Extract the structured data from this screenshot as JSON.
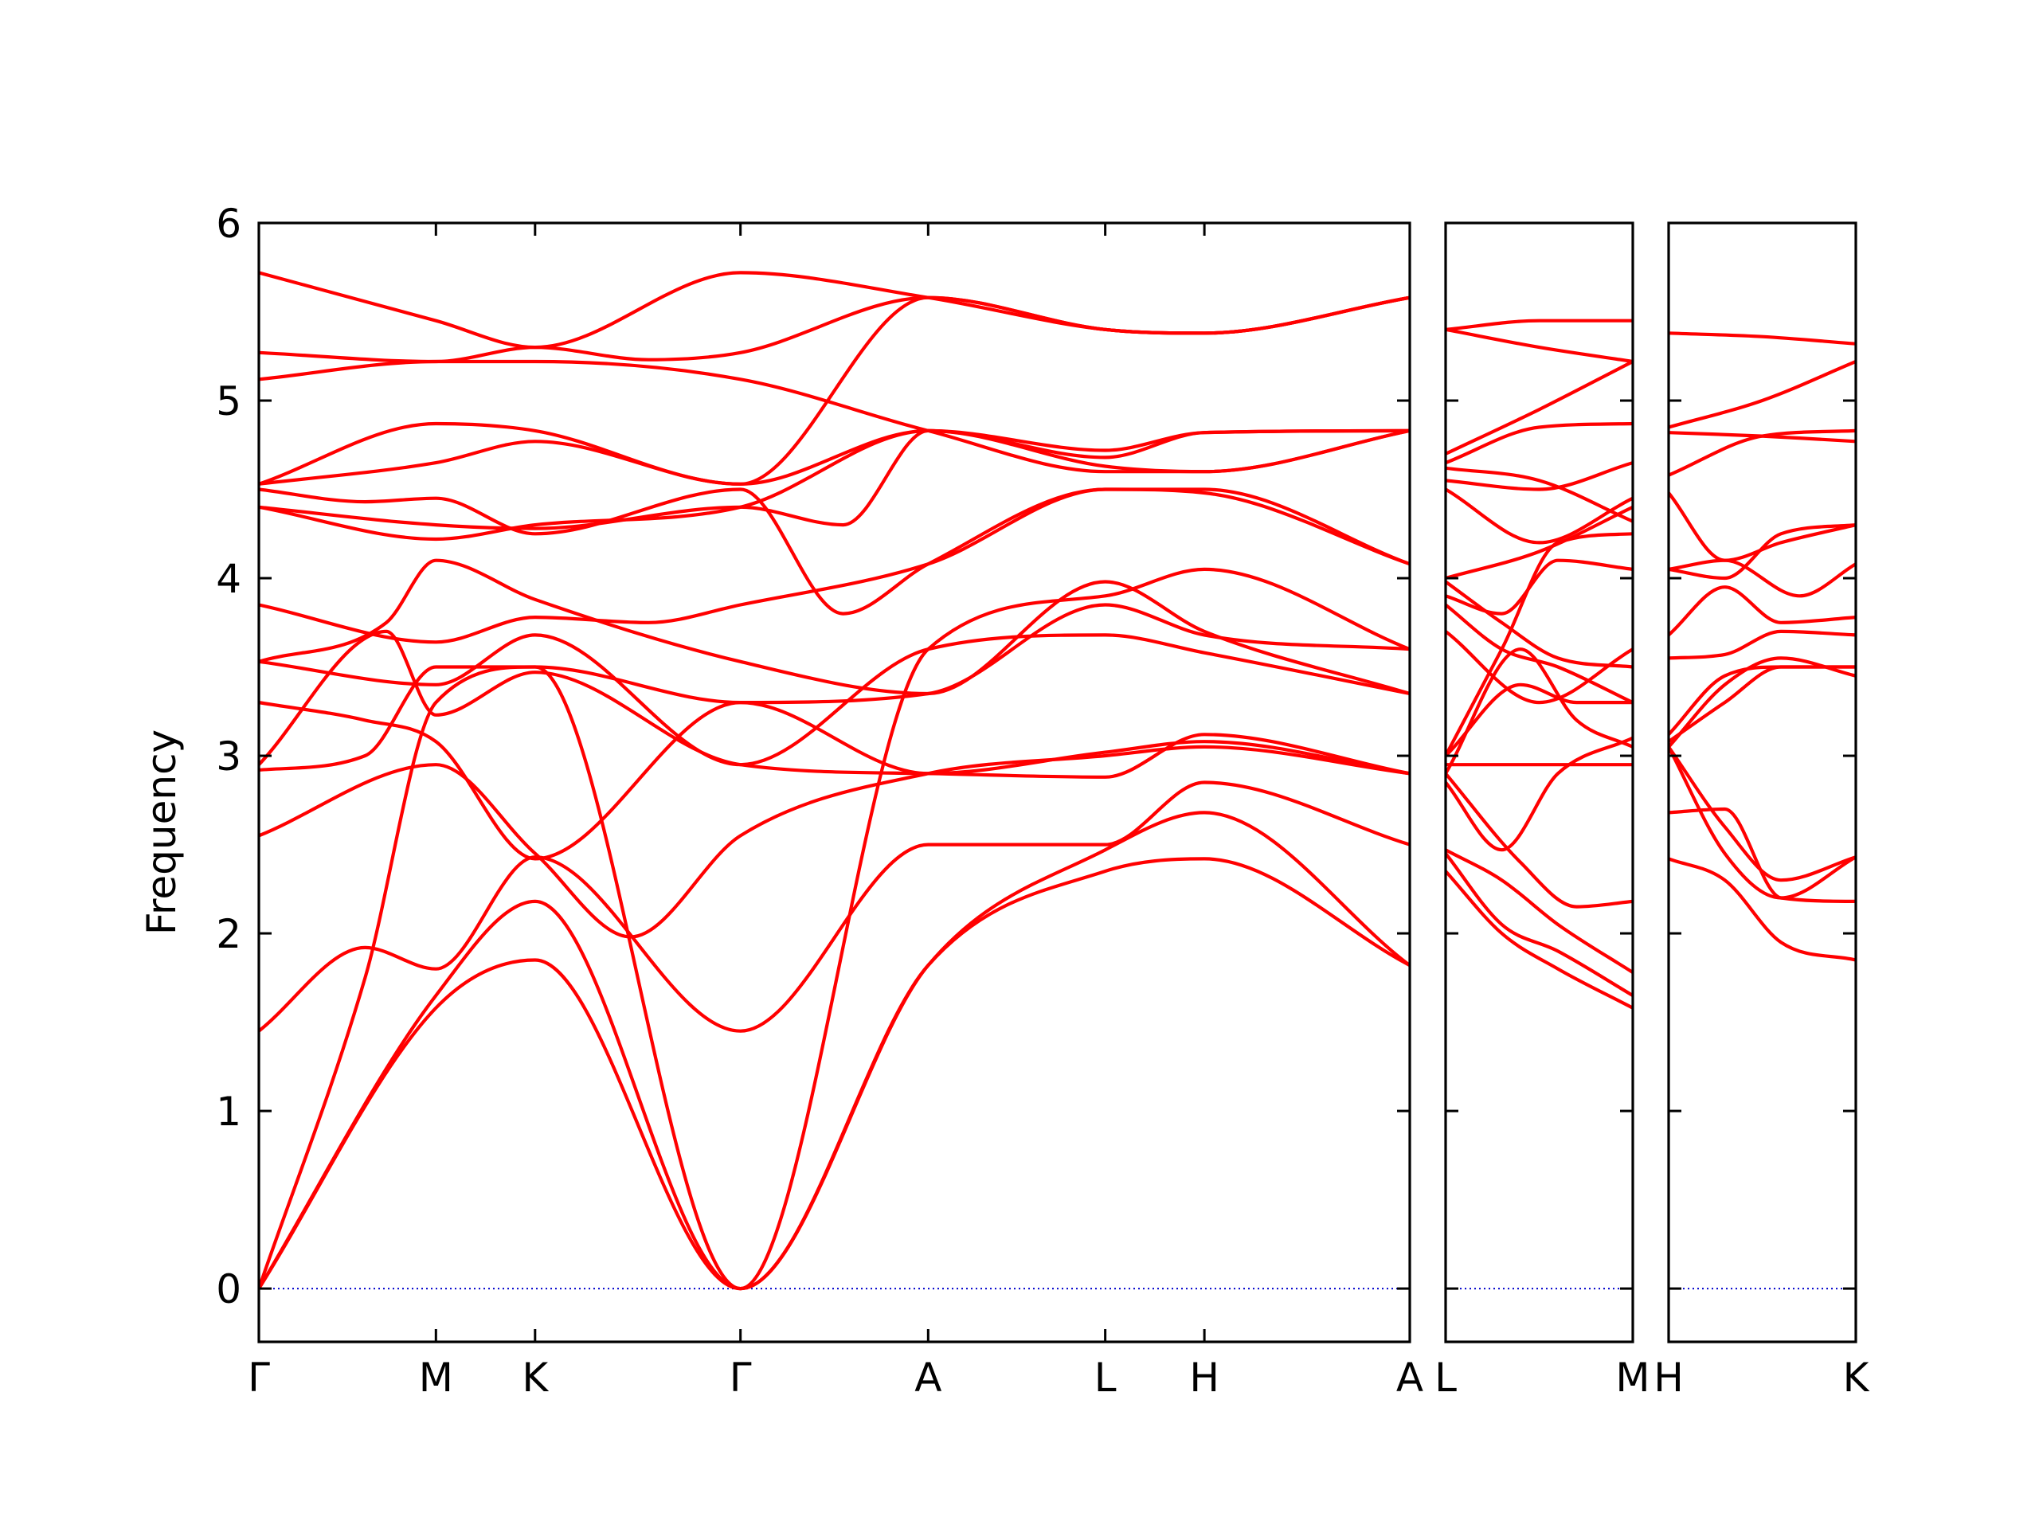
{
  "chart_data": {
    "type": "line",
    "ylabel": "Frequency",
    "ylim": [
      -0.3,
      6
    ],
    "yticks": [
      0,
      1,
      2,
      3,
      4,
      5,
      6
    ],
    "grid": false,
    "legend": "none",
    "line_color": "#ff0000",
    "zero_line_color": "#0000cc",
    "panels": [
      {
        "name": "main",
        "xlim": [
          0,
          6.5
        ],
        "xticks": [
          {
            "x": 0,
            "label": "Γ"
          },
          {
            "x": 1,
            "label": "M"
          },
          {
            "x": 1.56,
            "label": "K"
          },
          {
            "x": 2.72,
            "label": "Γ"
          },
          {
            "x": 3.78,
            "label": "A"
          },
          {
            "x": 4.78,
            "label": "L"
          },
          {
            "x": 5.34,
            "label": "H"
          },
          {
            "x": 6.5,
            "label": "A"
          }
        ],
        "series": [
          {
            "x": [
              0,
              1,
              1.56,
              2.72,
              3.78,
              4.78,
              5.34,
              6.5
            ],
            "y": [
              0,
              1.58,
              1.85,
              0,
              1.82,
              2.35,
              2.42,
              1.82
            ]
          },
          {
            "x": [
              0,
              1,
              1.56,
              2.72,
              3.78,
              4.78,
              5.34,
              6.5
            ],
            "y": [
              0,
              1.65,
              2.18,
              0,
              1.82,
              2.47,
              2.68,
              1.82
            ]
          },
          {
            "x": [
              0,
              0.6,
              1,
              1.56,
              2.72,
              3.78,
              4.78,
              5.34,
              6.5
            ],
            "y": [
              0,
              1.75,
              3.3,
              3.5,
              0,
              3.6,
              3.9,
              4.05,
              3.6
            ]
          },
          {
            "x": [
              0,
              0.6,
              1,
              1.56,
              2.72,
              3.78,
              4.78,
              5.34,
              6.5
            ],
            "y": [
              1.45,
              1.92,
              1.8,
              2.43,
              1.45,
              2.5,
              2.5,
              2.85,
              2.5
            ]
          },
          {
            "x": [
              0,
              1,
              1.56,
              2.1,
              2.72,
              3.78,
              4.78,
              5.34,
              6.5
            ],
            "y": [
              2.55,
              2.95,
              2.45,
              1.98,
              2.55,
              2.9,
              3.0,
              3.05,
              2.9
            ]
          },
          {
            "x": [
              0,
              0.72,
              1,
              1.56,
              2.72,
              3.78,
              4.78,
              5.34,
              6.5
            ],
            "y": [
              2.95,
              3.7,
              3.23,
              3.47,
              2.95,
              2.9,
              2.88,
              3.12,
              2.9
            ]
          },
          {
            "x": [
              0,
              0.6,
              1,
              1.56,
              2.72,
              3.78,
              4.78,
              5.34,
              6.5
            ],
            "y": [
              3.3,
              3.2,
              3.08,
              2.42,
              3.3,
              2.9,
              3.02,
              3.08,
              2.9
            ]
          },
          {
            "x": [
              0,
              1,
              1.56,
              2.72,
              3.78,
              4.78,
              5.34,
              6.5
            ],
            "y": [
              3.53,
              3.4,
              3.68,
              2.95,
              3.6,
              3.68,
              3.58,
              3.35
            ]
          },
          {
            "x": [
              0,
              0.6,
              1,
              1.56,
              2.72,
              3.78,
              4.78,
              5.34,
              6.5
            ],
            "y": [
              2.92,
              3.0,
              3.5,
              3.5,
              3.3,
              3.35,
              3.85,
              3.68,
              3.6
            ]
          },
          {
            "x": [
              0,
              1,
              1.56,
              2.2,
              2.72,
              3.78,
              4.78,
              5.34,
              6.5
            ],
            "y": [
              3.85,
              3.64,
              3.78,
              3.75,
              3.85,
              4.08,
              4.5,
              4.5,
              4.08
            ]
          },
          {
            "x": [
              0,
              0.72,
              1,
              1.56,
              2.72,
              3.78,
              4.78,
              5.34,
              6.5
            ],
            "y": [
              3.53,
              3.75,
              4.1,
              3.88,
              3.53,
              3.35,
              3.98,
              3.7,
              3.35
            ]
          },
          {
            "x": [
              0,
              1,
              1.56,
              2.72,
              3.3,
              3.78,
              4.78,
              5.34,
              6.5
            ],
            "y": [
              4.4,
              4.3,
              4.28,
              4.4,
              4.3,
              4.83,
              4.63,
              4.6,
              4.83
            ]
          },
          {
            "x": [
              0,
              1,
              1.56,
              2.72,
              3.78,
              4.78,
              5.34,
              6.5
            ],
            "y": [
              4.4,
              4.22,
              4.3,
              4.4,
              4.83,
              4.72,
              4.82,
              4.83
            ]
          },
          {
            "x": [
              0,
              0.6,
              1,
              1.56,
              2.72,
              3.3,
              3.78,
              4.78,
              5.34,
              6.5
            ],
            "y": [
              4.5,
              4.43,
              4.45,
              4.25,
              4.5,
              3.8,
              4.08,
              4.5,
              4.48,
              4.08
            ]
          },
          {
            "x": [
              0,
              1,
              1.56,
              2.72,
              3.78,
              4.78,
              5.34,
              6.5
            ],
            "y": [
              4.53,
              4.65,
              4.77,
              4.53,
              4.83,
              4.68,
              4.82,
              4.83
            ]
          },
          {
            "x": [
              0,
              1,
              1.56,
              2.72,
              3.78,
              4.78,
              5.34,
              6.5
            ],
            "y": [
              4.53,
              4.87,
              4.83,
              4.53,
              5.58,
              5.4,
              5.38,
              5.58
            ]
          },
          {
            "x": [
              0,
              1,
              1.56,
              2.72,
              3.78,
              4.78,
              5.34,
              6.5
            ],
            "y": [
              5.12,
              5.22,
              5.22,
              5.12,
              4.83,
              4.6,
              4.6,
              4.83
            ]
          },
          {
            "x": [
              0,
              1,
              1.56,
              2.2,
              2.72,
              3.78,
              4.78,
              5.34,
              6.5
            ],
            "y": [
              5.27,
              5.22,
              5.3,
              5.23,
              5.27,
              5.58,
              5.4,
              5.38,
              5.58
            ]
          },
          {
            "x": [
              0,
              1,
              1.56,
              2.72,
              3.78,
              4.78,
              5.34,
              6.5
            ],
            "y": [
              5.72,
              5.45,
              5.3,
              5.72,
              5.58,
              5.4,
              5.38,
              5.58
            ]
          }
        ]
      },
      {
        "name": "L-M",
        "xlim": [
          0,
          1
        ],
        "xticks": [
          {
            "x": 0,
            "label": "L"
          },
          {
            "x": 1,
            "label": "M"
          }
        ],
        "series": [
          {
            "x": [
              0,
              0.3,
              0.6,
              1
            ],
            "y": [
              2.35,
              2.0,
              1.8,
              1.58
            ]
          },
          {
            "x": [
              0,
              0.3,
              0.6,
              1
            ],
            "y": [
              2.45,
              2.05,
              1.9,
              1.65
            ]
          },
          {
            "x": [
              0,
              0.3,
              0.6,
              1
            ],
            "y": [
              2.47,
              2.3,
              2.05,
              1.78
            ]
          },
          {
            "x": [
              0,
              0.4,
              0.7,
              1
            ],
            "y": [
              2.9,
              2.4,
              2.15,
              2.18
            ]
          },
          {
            "x": [
              0,
              0.3,
              0.6,
              1
            ],
            "y": [
              2.85,
              2.47,
              2.9,
              3.1
            ]
          },
          {
            "x": [
              0,
              0.5,
              1
            ],
            "y": [
              2.95,
              2.95,
              2.95
            ]
          },
          {
            "x": [
              0,
              0.4,
              0.7,
              1
            ],
            "y": [
              3.0,
              3.4,
              3.3,
              3.3
            ]
          },
          {
            "x": [
              0,
              0.4,
              0.7,
              1
            ],
            "y": [
              2.9,
              3.6,
              3.2,
              3.05
            ]
          },
          {
            "x": [
              0,
              0.5,
              1
            ],
            "y": [
              3.7,
              3.3,
              3.6
            ]
          },
          {
            "x": [
              0,
              0.3,
              0.6,
              1
            ],
            "y": [
              3.0,
              3.6,
              4.2,
              4.25
            ]
          },
          {
            "x": [
              0,
              0.3,
              0.6,
              1
            ],
            "y": [
              3.85,
              3.6,
              3.5,
              3.3
            ]
          },
          {
            "x": [
              0,
              0.3,
              0.6,
              1
            ],
            "y": [
              3.98,
              3.75,
              3.55,
              3.5
            ]
          },
          {
            "x": [
              0,
              0.3,
              0.6,
              1
            ],
            "y": [
              3.9,
              3.8,
              4.1,
              4.05
            ]
          },
          {
            "x": [
              0,
              0.5,
              1
            ],
            "y": [
              4.0,
              4.15,
              4.4
            ]
          },
          {
            "x": [
              0,
              0.5,
              1
            ],
            "y": [
              4.5,
              4.2,
              4.45
            ]
          },
          {
            "x": [
              0,
              0.5,
              1
            ],
            "y": [
              4.55,
              4.5,
              4.65
            ]
          },
          {
            "x": [
              0,
              0.5,
              1
            ],
            "y": [
              4.62,
              4.55,
              4.32
            ]
          },
          {
            "x": [
              0,
              0.5,
              1
            ],
            "y": [
              4.65,
              4.85,
              4.87
            ]
          },
          {
            "x": [
              0,
              0.5,
              1
            ],
            "y": [
              4.7,
              4.95,
              5.22
            ]
          },
          {
            "x": [
              0,
              0.5,
              1
            ],
            "y": [
              5.4,
              5.3,
              5.22
            ]
          },
          {
            "x": [
              0,
              0.5,
              1
            ],
            "y": [
              5.4,
              5.45,
              5.45
            ]
          }
        ]
      },
      {
        "name": "H-K",
        "xlim": [
          0,
          1
        ],
        "xticks": [
          {
            "x": 0,
            "label": "H"
          },
          {
            "x": 1,
            "label": "K"
          }
        ],
        "series": [
          {
            "x": [
              0,
              0.3,
              0.6,
              1
            ],
            "y": [
              2.42,
              2.3,
              1.95,
              1.85
            ]
          },
          {
            "x": [
              0,
              0.3,
              0.6,
              1
            ],
            "y": [
              2.68,
              2.7,
              2.2,
              2.18
            ]
          },
          {
            "x": [
              0,
              0.3,
              0.6,
              1
            ],
            "y": [
              3.05,
              2.6,
              2.3,
              2.43
            ]
          },
          {
            "x": [
              0,
              0.3,
              0.6,
              1
            ],
            "y": [
              3.05,
              2.45,
              2.2,
              2.43
            ]
          },
          {
            "x": [
              0,
              0.3,
              0.6,
              1
            ],
            "y": [
              3.05,
              3.4,
              3.55,
              3.45
            ]
          },
          {
            "x": [
              0,
              0.3,
              0.6,
              1
            ],
            "y": [
              3.08,
              3.3,
              3.5,
              3.5
            ]
          },
          {
            "x": [
              0,
              0.3,
              0.6,
              1
            ],
            "y": [
              3.12,
              3.45,
              3.5,
              3.5
            ]
          },
          {
            "x": [
              0,
              0.3,
              0.6,
              1
            ],
            "y": [
              3.55,
              3.57,
              3.7,
              3.68
            ]
          },
          {
            "x": [
              0,
              0.3,
              0.6,
              1
            ],
            "y": [
              3.68,
              3.95,
              3.75,
              3.78
            ]
          },
          {
            "x": [
              0,
              0.3,
              0.7,
              1
            ],
            "y": [
              4.05,
              4.1,
              3.9,
              4.08
            ]
          },
          {
            "x": [
              0,
              0.3,
              0.6,
              1
            ],
            "y": [
              4.48,
              4.1,
              4.2,
              4.3
            ]
          },
          {
            "x": [
              0,
              0.3,
              0.6,
              1
            ],
            "y": [
              4.05,
              4.0,
              4.25,
              4.3
            ]
          },
          {
            "x": [
              0,
              0.5,
              1
            ],
            "y": [
              4.58,
              4.8,
              4.83
            ]
          },
          {
            "x": [
              0,
              0.5,
              1
            ],
            "y": [
              4.82,
              4.8,
              4.77
            ]
          },
          {
            "x": [
              0,
              0.5,
              1
            ],
            "y": [
              4.85,
              5.0,
              5.22
            ]
          },
          {
            "x": [
              0,
              0.5,
              1
            ],
            "y": [
              5.38,
              5.36,
              5.32
            ]
          }
        ]
      }
    ]
  }
}
